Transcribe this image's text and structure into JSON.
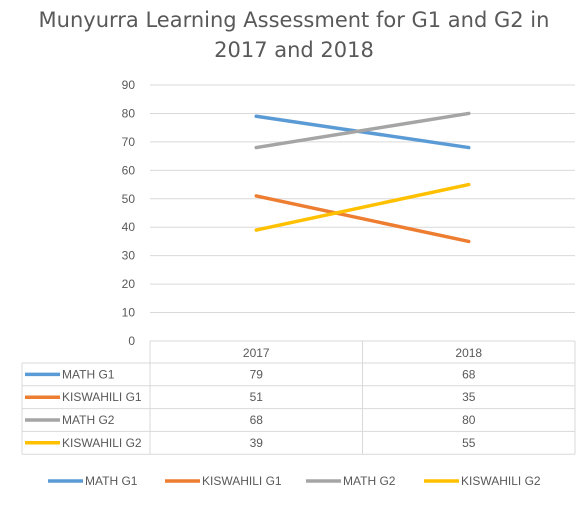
{
  "chart_data": {
    "type": "line",
    "title_lines": [
      "Munyurra Learning Assessment for G1 and G2 in",
      "2017 and 2018"
    ],
    "categories": [
      "2017",
      "2018"
    ],
    "series": [
      {
        "name": "MATH G1",
        "values": [
          79,
          68
        ],
        "color": "#5B9BD5"
      },
      {
        "name": "KISWAHILI G1",
        "values": [
          51,
          35
        ],
        "color": "#ED7D31"
      },
      {
        "name": "MATH G2",
        "values": [
          68,
          80
        ],
        "color": "#A5A5A5"
      },
      {
        "name": "KISWAHILI G2",
        "values": [
          39,
          55
        ],
        "color": "#FFC000"
      }
    ],
    "y_ticks": [
      "0",
      "10",
      "20",
      "30",
      "40",
      "50",
      "60",
      "70",
      "80",
      "90"
    ],
    "ylim": [
      0,
      90
    ],
    "grid": true,
    "data_table": true,
    "legend_position": "bottom"
  }
}
